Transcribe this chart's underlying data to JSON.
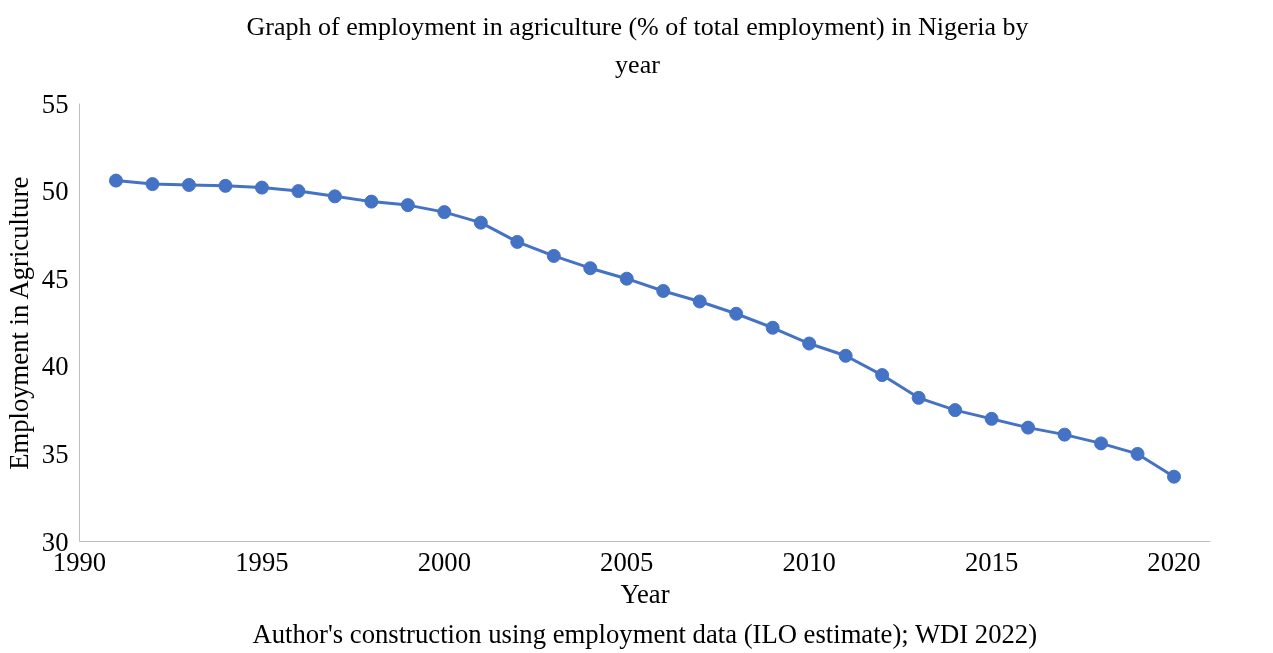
{
  "chart_data": {
    "type": "line",
    "title": "Graph of employment in agriculture (% of total employment) in Nigeria by year",
    "xlabel": "Year",
    "ylabel": "Employment in Agriculture",
    "annotations": [
      "Author's construction using employment data (ILO estimate); WDI 2022)"
    ],
    "x": [
      1991,
      1992,
      1993,
      1994,
      1995,
      1996,
      1997,
      1998,
      1999,
      2000,
      2001,
      2002,
      2003,
      2004,
      2005,
      2006,
      2007,
      2008,
      2009,
      2010,
      2011,
      2012,
      2013,
      2014,
      2015,
      2016,
      2017,
      2018,
      2019,
      2020
    ],
    "series": [
      {
        "color": "#4472c4",
        "values": [
          50.6,
          50.4,
          50.35,
          50.3,
          50.2,
          50.0,
          49.7,
          49.4,
          49.2,
          48.8,
          48.2,
          47.1,
          46.3,
          45.6,
          45.0,
          44.3,
          43.7,
          43.0,
          42.2,
          41.3,
          40.6,
          39.5,
          38.2,
          37.5,
          37.0,
          36.5,
          36.1,
          35.6,
          35.0,
          33.7
        ]
      }
    ],
    "xlim": [
      1990,
      2021
    ],
    "ylim": [
      30,
      55
    ],
    "xticks": [
      1990,
      1995,
      2000,
      2005,
      2010,
      2015,
      2020
    ],
    "yticks": [
      30,
      35,
      40,
      45,
      50,
      55
    ],
    "grid": false,
    "marker": "circle",
    "line_style": "solid"
  }
}
